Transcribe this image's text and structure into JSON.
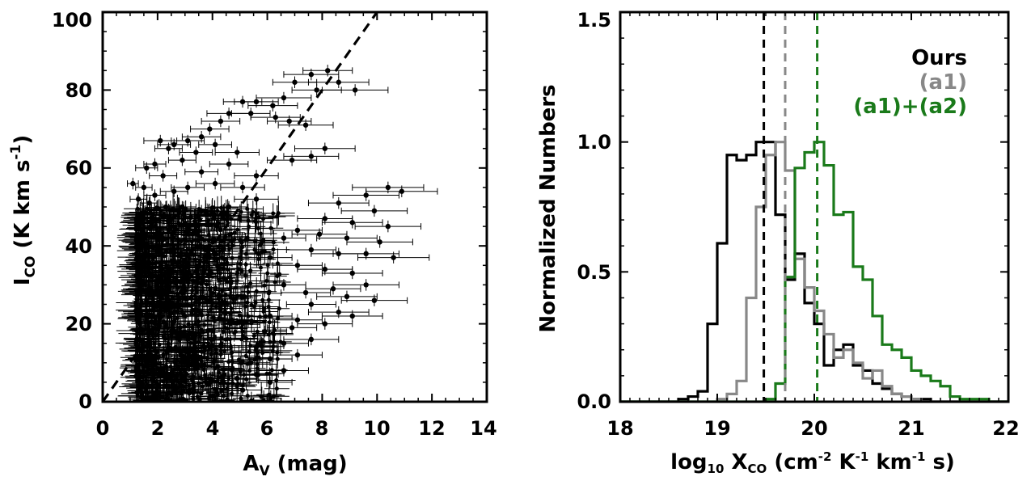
{
  "chart_data": [
    {
      "type": "scatter",
      "title": "",
      "xlabel": {
        "base": "A",
        "sub": "V",
        "rest": " (mag)"
      },
      "ylabel": {
        "base": "I",
        "sub": "CO",
        "rest": " (K km s",
        "sup": "-1",
        "end": ")"
      },
      "xlim": [
        0,
        14
      ],
      "ylim": [
        0,
        100
      ],
      "xticks": [
        0,
        2,
        4,
        6,
        8,
        10,
        12,
        14
      ],
      "yticks": [
        0,
        20,
        40,
        60,
        80,
        100
      ],
      "xtick_labels": [
        "0",
        "2",
        "4",
        "6",
        "8",
        "10",
        "12",
        "14"
      ],
      "ytick_labels": [
        "0",
        "20",
        "40",
        "60",
        "80",
        "100"
      ],
      "fit_line": {
        "style": "dashed",
        "color": "#000000",
        "points": [
          [
            0,
            0
          ],
          [
            10,
            100
          ]
        ]
      },
      "series": [
        {
          "name": "data",
          "color": "#000000",
          "error_bars": true,
          "points": [
            [
              8.2,
              85,
              0.9
            ],
            [
              7.6,
              84,
              1.0
            ],
            [
              8.6,
              82,
              1.1
            ],
            [
              7.8,
              80,
              0.9
            ],
            [
              9.2,
              80,
              1.2
            ],
            [
              7.0,
              82,
              0.8
            ],
            [
              6.6,
              78,
              1.0
            ],
            [
              6.2,
              76,
              0.9
            ],
            [
              5.6,
              77,
              0.8
            ],
            [
              5.1,
              77,
              0.7
            ],
            [
              4.6,
              74,
              0.8
            ],
            [
              5.4,
              74,
              0.7
            ],
            [
              4.3,
              72,
              0.7
            ],
            [
              6.3,
              73,
              0.9
            ],
            [
              6.8,
              72,
              0.8
            ],
            [
              7.4,
              71,
              1.0
            ],
            [
              3.9,
              70,
              0.7
            ],
            [
              3.6,
              68,
              0.7
            ],
            [
              4.1,
              66,
              0.6
            ],
            [
              3.1,
              67,
              0.6
            ],
            [
              2.6,
              66,
              0.6
            ],
            [
              2.1,
              67,
              0.6
            ],
            [
              2.4,
              65,
              0.5
            ],
            [
              3.4,
              64,
              0.6
            ],
            [
              4.9,
              64,
              0.8
            ],
            [
              6.9,
              62,
              0.9
            ],
            [
              7.6,
              63,
              1.0
            ],
            [
              8.1,
              65,
              1.1
            ],
            [
              2.9,
              62,
              0.5
            ],
            [
              4.6,
              61,
              0.7
            ],
            [
              1.9,
              61,
              0.4
            ],
            [
              1.6,
              60,
              0.4
            ],
            [
              2.2,
              58,
              0.5
            ],
            [
              3.6,
              59,
              0.6
            ],
            [
              5.6,
              58,
              0.8
            ],
            [
              1.1,
              56,
              0.2
            ],
            [
              1.5,
              55,
              0.3
            ],
            [
              1.9,
              53,
              0.4
            ],
            [
              2.6,
              54,
              0.5
            ],
            [
              3.1,
              55,
              0.6
            ],
            [
              4.1,
              56,
              0.7
            ],
            [
              5.1,
              55,
              0.8
            ],
            [
              1.3,
              52,
              0.3
            ],
            [
              1.7,
              51,
              0.3
            ],
            [
              2.3,
              50,
              0.4
            ],
            [
              2.9,
              50,
              0.5
            ],
            [
              3.6,
              49,
              0.6
            ],
            [
              4.6,
              50,
              0.7
            ],
            [
              5.6,
              52,
              0.8
            ],
            [
              10.4,
              55,
              1.3
            ],
            [
              10.9,
              54,
              1.3
            ],
            [
              9.6,
              53,
              1.2
            ],
            [
              8.6,
              51,
              1.1
            ],
            [
              9.9,
              49,
              1.2
            ],
            [
              8.1,
              47,
              1.0
            ],
            [
              9.1,
              46,
              1.1
            ],
            [
              10.4,
              45,
              1.2
            ],
            [
              7.1,
              44,
              0.9
            ],
            [
              7.9,
              43,
              1.0
            ],
            [
              8.9,
              42,
              1.1
            ],
            [
              10.1,
              41,
              1.2
            ],
            [
              6.6,
              42,
              0.8
            ],
            [
              7.6,
              39,
              0.9
            ],
            [
              8.6,
              38,
              1.0
            ],
            [
              9.6,
              38,
              1.2
            ],
            [
              10.6,
              37,
              1.3
            ],
            [
              6.1,
              37,
              0.8
            ],
            [
              7.1,
              35,
              0.9
            ],
            [
              8.1,
              34,
              1.0
            ],
            [
              9.1,
              33,
              1.1
            ],
            [
              9.6,
              30,
              1.2
            ],
            [
              8.4,
              29,
              1.0
            ],
            [
              7.4,
              28,
              0.9
            ],
            [
              6.6,
              30,
              0.8
            ],
            [
              8.9,
              27,
              1.1
            ],
            [
              9.9,
              26,
              1.2
            ],
            [
              7.6,
              25,
              0.9
            ],
            [
              8.6,
              23,
              1.1
            ],
            [
              9.1,
              22,
              1.1
            ],
            [
              7.1,
              21,
              0.9
            ],
            [
              6.1,
              22,
              0.8
            ],
            [
              8.1,
              20,
              1.0
            ],
            [
              6.9,
              19,
              0.9
            ],
            [
              5.9,
              18,
              0.8
            ],
            [
              7.6,
              16,
              1.0
            ],
            [
              6.6,
              15,
              0.9
            ],
            [
              5.6,
              14,
              0.8
            ],
            [
              7.1,
              12,
              0.9
            ],
            [
              6.1,
              11,
              0.8
            ],
            [
              5.4,
              10,
              0.7
            ],
            [
              6.6,
              8,
              0.9
            ],
            [
              5.6,
              7,
              0.8
            ],
            [
              4.9,
              6,
              0.7
            ],
            [
              6.1,
              5,
              0.8
            ],
            [
              5.1,
              3,
              0.7
            ]
          ]
        }
      ],
      "dense_cloud": {
        "x_range": [
          1.2,
          6.5
        ],
        "y_range": [
          0,
          50
        ],
        "description": "heavily overlapping points with error bars"
      }
    },
    {
      "type": "histogram",
      "title": "",
      "xlabel": {
        "pre": "log",
        "sub": "10",
        "mid": " X",
        "sub2": "CO",
        "rest": " (cm",
        "sup1": "-2",
        "r2": " K",
        "sup2": "-1",
        "r3": " km",
        "sup3": "-1",
        "end": " s)"
      },
      "ylabel": "Normalized Numbers",
      "xlim": [
        18,
        22
      ],
      "ylim": [
        0,
        1.5
      ],
      "xticks": [
        18,
        19,
        20,
        21,
        22
      ],
      "yticks": [
        0,
        0.5,
        1.0,
        1.5
      ],
      "xtick_labels": [
        "18",
        "19",
        "20",
        "21",
        "22"
      ],
      "ytick_labels": [
        "0.0",
        "0.5",
        "1.0",
        "1.5"
      ],
      "bin_edges": [
        18.0,
        18.1,
        18.2,
        18.3,
        18.4,
        18.5,
        18.6,
        18.7,
        18.8,
        18.9,
        19.0,
        19.1,
        19.2,
        19.3,
        19.4,
        19.5,
        19.6,
        19.7,
        19.8,
        19.9,
        20.0,
        20.1,
        20.2,
        20.3,
        20.4,
        20.5,
        20.6,
        20.7,
        20.8,
        20.9,
        21.0,
        21.1,
        21.2,
        21.3,
        21.4,
        21.5,
        21.6,
        21.7,
        21.8,
        21.9,
        22.0
      ],
      "series": [
        {
          "name": "Ours",
          "color": "#000000",
          "values": [
            0,
            0,
            0,
            0,
            0,
            0,
            0.01,
            0.02,
            0.04,
            0.3,
            0.61,
            0.95,
            0.93,
            0.95,
            1.0,
            1.0,
            0.72,
            0.47,
            0.57,
            0.38,
            0.3,
            0.14,
            0.2,
            0.22,
            0.14,
            0.12,
            0.07,
            0.05,
            0.03,
            0.02,
            0.01,
            0.01,
            0,
            0,
            0,
            0,
            0,
            0,
            0,
            0
          ]
        },
        {
          "name": "(a1)",
          "color": "#888888",
          "values": [
            0,
            0,
            0,
            0,
            0,
            0,
            0,
            0,
            0,
            0,
            0.01,
            0.03,
            0.08,
            0.4,
            0.75,
            0.95,
            1.0,
            0.89,
            0.55,
            0.44,
            0.35,
            0.26,
            0.17,
            0.2,
            0.15,
            0.09,
            0.12,
            0.06,
            0.03,
            0.02,
            0.01,
            0,
            0,
            0,
            0,
            0,
            0,
            0,
            0,
            0
          ]
        },
        {
          "name": "(a1)+(a2)",
          "color": "#1a7a1a",
          "values": [
            0,
            0,
            0,
            0,
            0,
            0,
            0,
            0,
            0,
            0,
            0,
            0,
            0,
            0,
            0,
            0.01,
            0.07,
            0.48,
            0.9,
            0.96,
            1.0,
            0.91,
            0.72,
            0.73,
            0.52,
            0.47,
            0.33,
            0.22,
            0.2,
            0.17,
            0.12,
            0.1,
            0.08,
            0.06,
            0.02,
            0.01,
            0.01,
            0.01,
            0,
            0
          ]
        }
      ],
      "vlines": [
        {
          "series": "Ours",
          "x": 19.48,
          "color": "#000000",
          "style": "dashed"
        },
        {
          "series": "(a1)",
          "x": 19.7,
          "color": "#888888",
          "style": "dashed"
        },
        {
          "series": "(a1)+(a2)",
          "x": 20.03,
          "color": "#1a7a1a",
          "style": "dashed"
        }
      ],
      "legend": {
        "placement": "top-right",
        "entries": [
          "Ours",
          "(a1)",
          "(a1)+(a2)"
        ]
      }
    }
  ]
}
